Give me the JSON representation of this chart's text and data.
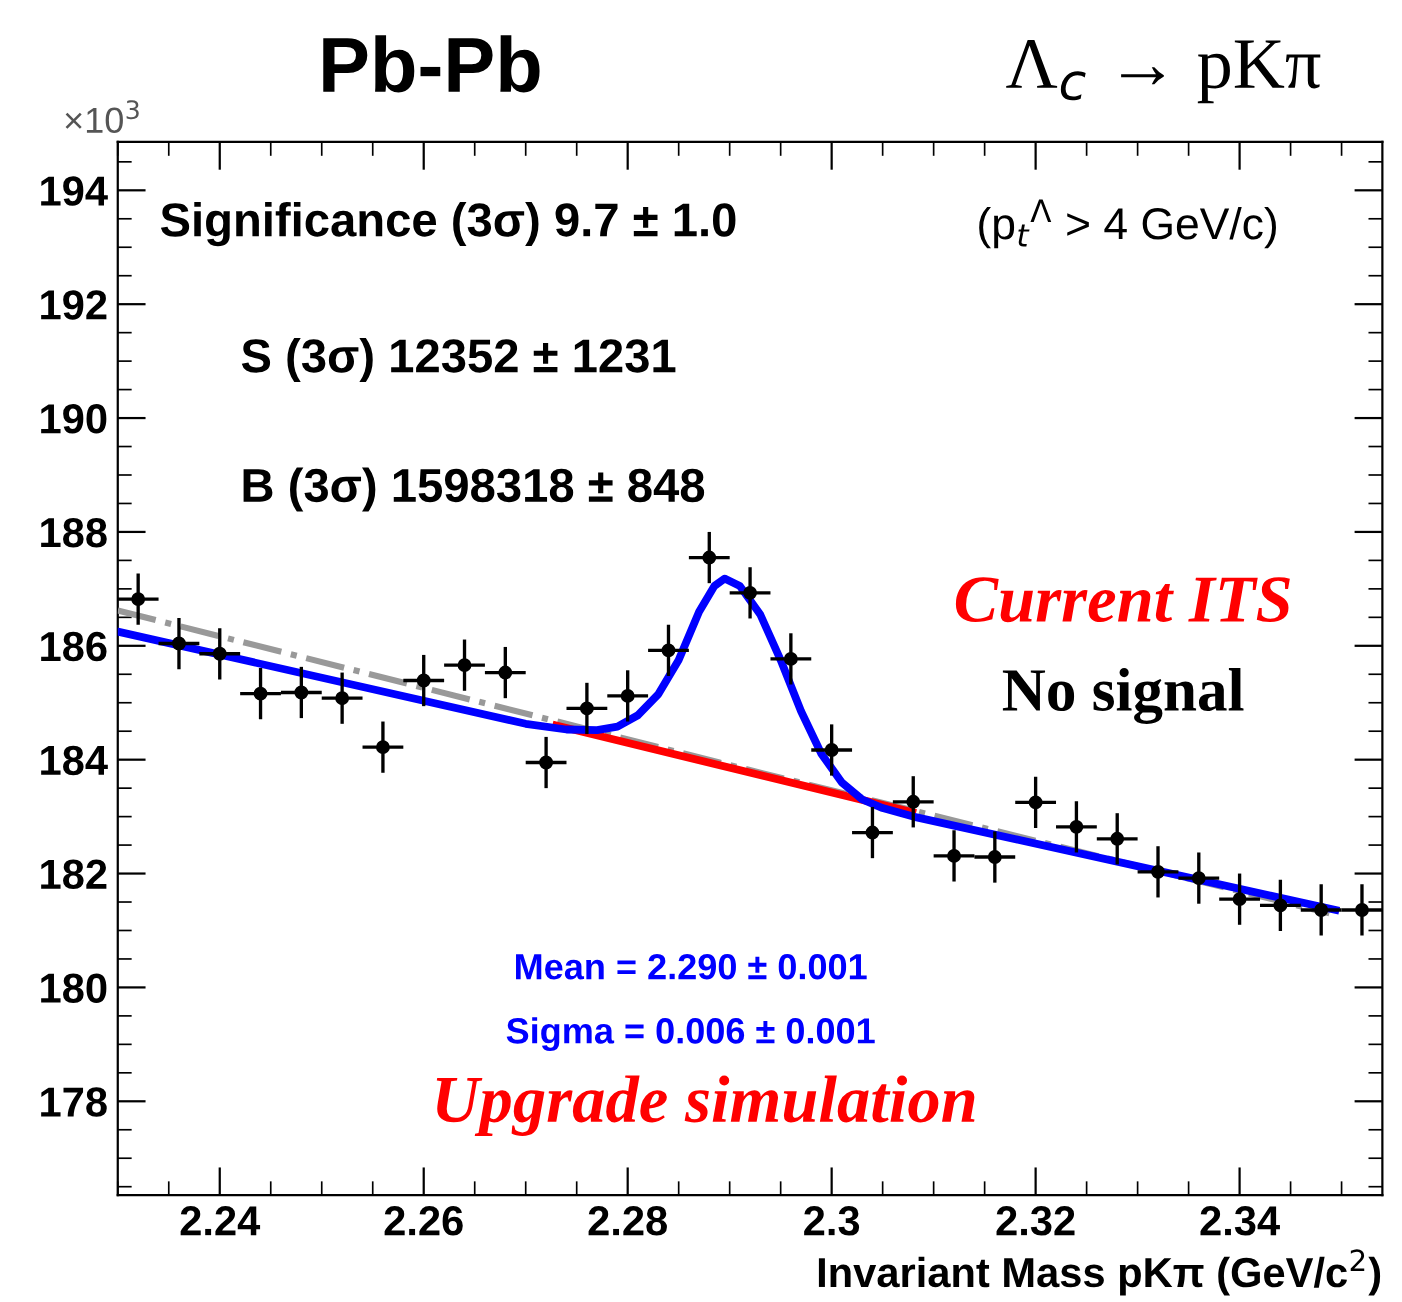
{
  "chart_data": {
    "type": "scatter",
    "title": "Pb-Pb",
    "subtitle": "Λ$_{c}$ → pKπ",
    "xlabel": "Invariant Mass pKπ (GeV/c$^{2}$)",
    "x": [
      2.232,
      2.236,
      2.24,
      2.244,
      2.248,
      2.252,
      2.256,
      2.26,
      2.264,
      2.268,
      2.272,
      2.276,
      2.28,
      2.284,
      2.288,
      2.292,
      2.296,
      2.3,
      2.304,
      2.308,
      2.312,
      2.316,
      2.32,
      2.324,
      2.328,
      2.332,
      2.336,
      2.34,
      2.344,
      2.348,
      2.352
    ],
    "series": [
      {
        "color": "#000000",
        "values": [
          186.82,
          186.04,
          185.86,
          185.16,
          185.18,
          185.08,
          184.22,
          185.39,
          185.66,
          185.53,
          183.95,
          184.9,
          185.12,
          185.92,
          187.55,
          186.93,
          185.77,
          184.17,
          182.72,
          183.26,
          182.31,
          182.29,
          183.25,
          182.82,
          182.61,
          182.03,
          181.92,
          181.55,
          181.44,
          181.36,
          181.36
        ],
        "errors": [
          0.45,
          0.45,
          0.45,
          0.45,
          0.45,
          0.45,
          0.45,
          0.45,
          0.45,
          0.45,
          0.45,
          0.45,
          0.45,
          0.45,
          0.45,
          0.45,
          0.45,
          0.45,
          0.45,
          0.45,
          0.45,
          0.45,
          0.45,
          0.45,
          0.45,
          0.45,
          0.45,
          0.45,
          0.45,
          0.45,
          0.45
        ],
        "xerrors": [
          0.002,
          0.002,
          0.002,
          0.002,
          0.002,
          0.002,
          0.002,
          0.002,
          0.002,
          0.002,
          0.002,
          0.002,
          0.002,
          0.002,
          0.002,
          0.002,
          0.002,
          0.002,
          0.002,
          0.002,
          0.002,
          0.002,
          0.002,
          0.002,
          0.002,
          0.002,
          0.002,
          0.002,
          0.002,
          0.002,
          0.002
        ],
        "marker": "circle"
      },
      {
        "type": "line",
        "color": "#999999",
        "line_style": "dashed",
        "x": [
          2.23,
          2.289,
          2.3488
        ],
        "values": [
          186.62,
          183.95,
          181.3
        ]
      },
      {
        "type": "line",
        "color": "#ff0000",
        "line_style": "solid",
        "x": [
          2.273,
          2.3079
        ],
        "values": [
          184.6,
          183.08
        ]
      },
      {
        "type": "line",
        "color": "#0000ff",
        "line_style": "solid",
        "x": [
          2.23,
          2.27,
          2.274,
          2.277,
          2.279,
          2.281,
          2.283,
          2.285,
          2.287,
          2.2885,
          2.2895,
          2.291,
          2.293,
          2.295,
          2.297,
          2.299,
          2.301,
          2.303,
          2.305,
          2.308,
          2.3494
        ],
        "values": [
          186.25,
          184.63,
          184.53,
          184.52,
          184.58,
          184.78,
          185.15,
          185.75,
          186.6,
          187.05,
          187.18,
          187.05,
          186.55,
          185.75,
          184.85,
          184.1,
          183.6,
          183.3,
          183.15,
          183.0,
          181.36
        ]
      }
    ],
    "xlim": [
      2.23,
      2.354
    ],
    "xticks": [
      2.24,
      2.26,
      2.28,
      2.3,
      2.32,
      2.34
    ],
    "ylim": [
      176.35,
      194.85
    ],
    "yticks": [
      178,
      180,
      182,
      184,
      186,
      188,
      190,
      192,
      194
    ],
    "annotations": [
      "×10$^{3}$",
      "Significance (3σ) 9.7 ± 1.0",
      "(p$_{t}$$^{Λ}$ > 4 GeV/c)",
      "S (3σ) 12352 ± 1231",
      "B (3σ) 1598318 ± 848",
      "Current ITS",
      "No signal",
      "Mean = 2.290 ± 0.001",
      "Sigma = 0.006 ± 0.001",
      "Upgrade simulation"
    ],
    "grid": false,
    "legend": false
  }
}
